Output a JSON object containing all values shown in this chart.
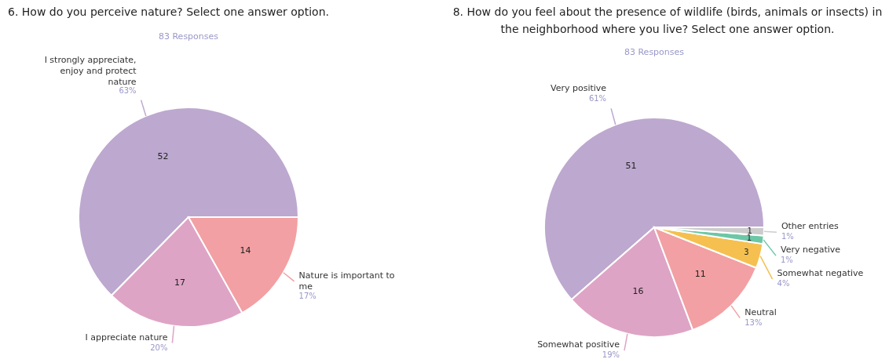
{
  "chart_data": [
    {
      "type": "pie",
      "title": "6. How do you perceive nature? Select one answer option.",
      "subtitle": "83 Responses",
      "categories": [
        "I strongly appreciate, enjoy and protect nature",
        "I appreciate nature",
        "Nature is important to me"
      ],
      "values": [
        52,
        17,
        14
      ],
      "colors": [
        "#bda8cf",
        "#dea4c5",
        "#f2a0a3"
      ],
      "annotations": [
        "63%",
        "20%",
        "17%"
      ],
      "data_labels": true,
      "legend": false
    },
    {
      "type": "pie",
      "title": "8. How do you feel about the presence of wildlife (birds, animals or insects) in the neighborhood where you live? Select one answer option.",
      "subtitle": "83 Responses",
      "categories": [
        "Very positive",
        "Somewhat positive",
        "Neutral",
        "Somewhat negative",
        "Very negative",
        "Other entries"
      ],
      "values": [
        51,
        16,
        11,
        3,
        1,
        1
      ],
      "colors": [
        "#bda8cf",
        "#dea4c5",
        "#f2a0a3",
        "#f5c04f",
        "#6cc7a6",
        "#cccccc"
      ],
      "annotations": [
        "61%",
        "19%",
        "13%",
        "4%",
        "1%",
        "1%"
      ],
      "data_labels": true,
      "legend": false
    }
  ]
}
